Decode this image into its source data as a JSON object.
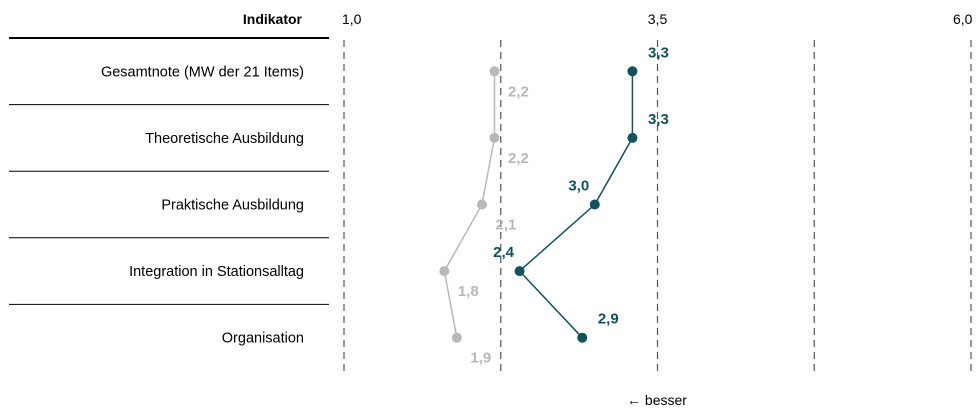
{
  "chart_data": {
    "type": "line",
    "header": "Indikator",
    "categories": [
      "Gesamtnote (MW der 21 Items)",
      "Theoretische Ausbildung",
      "Praktische Ausbildung",
      "Integration in Stationsalltag",
      "Organisation"
    ],
    "xlim": [
      1.0,
      6.0
    ],
    "gridlines": [
      1.0,
      2.25,
      3.5,
      4.75,
      6.0
    ],
    "tick_labels": [
      {
        "value": 1.0,
        "label": "1,0"
      },
      {
        "value": 3.5,
        "label": "3,5"
      },
      {
        "value": 6.0,
        "label": "6,0"
      }
    ],
    "orientation": "horizontal-values-vertical-categories",
    "series": [
      {
        "values": [
          2.2,
          2.2,
          2.1,
          1.8,
          1.9
        ],
        "labels": [
          "2,2",
          "2,2",
          "2,1",
          "1,8",
          "1,9"
        ],
        "color": "#b8b8b8"
      },
      {
        "values": [
          3.3,
          3.3,
          3.0,
          2.4,
          2.9
        ],
        "labels": [
          "3,3",
          "3,3",
          "3,0",
          "2,4",
          "2,9"
        ],
        "color": "#0e535e"
      }
    ],
    "footer_note": "← besser",
    "grid": true
  }
}
